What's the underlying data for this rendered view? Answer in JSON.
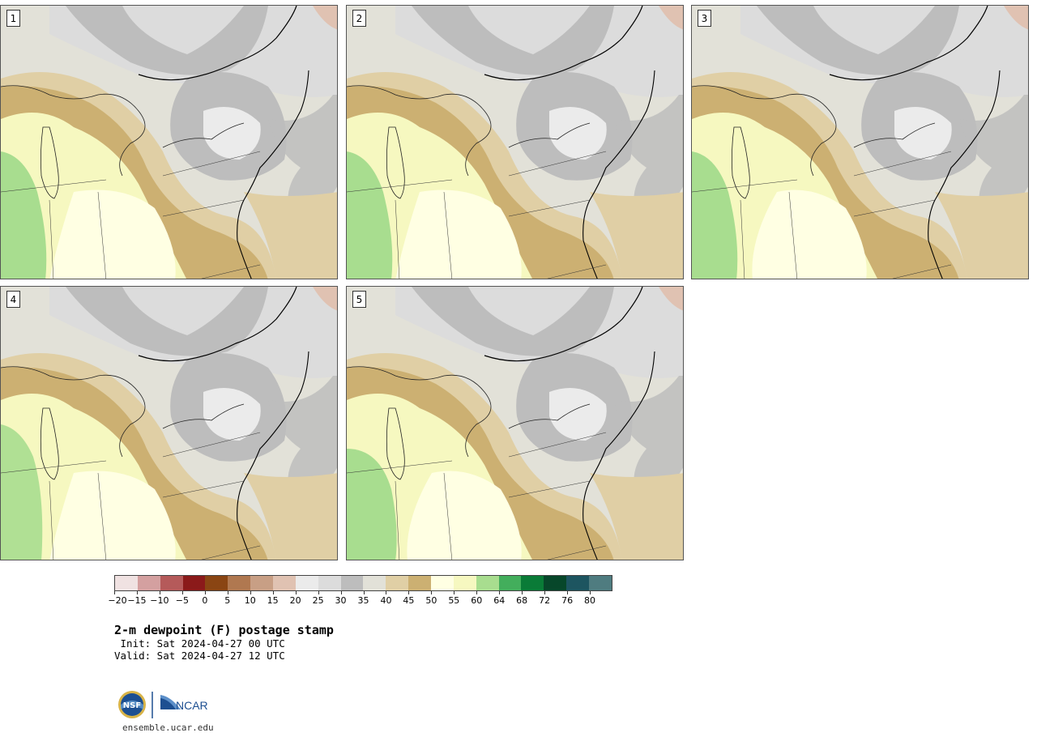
{
  "panels": [
    {
      "number": "1"
    },
    {
      "number": "2"
    },
    {
      "number": "3"
    },
    {
      "number": "4"
    },
    {
      "number": "5"
    }
  ],
  "colorbar": {
    "colors": [
      "#f0e2e2",
      "#d4a0a0",
      "#b55a5a",
      "#8b1a1a",
      "#8a4513",
      "#b07850",
      "#c89f85",
      "#e0c2b2",
      "#ebebeb",
      "#dcdcdc",
      "#bdbdbd",
      "#e2e1d8",
      "#e0cfa5",
      "#ccb072",
      "#ffffe3",
      "#f6f8c0",
      "#a8dd8f",
      "#43ae5c",
      "#0a7b37",
      "#07472a",
      "#1d5560",
      "#4f7c80"
    ],
    "tick_labels": [
      "−20",
      "−15",
      "−10",
      "−5",
      "0",
      "5",
      "10",
      "15",
      "20",
      "25",
      "30",
      "35",
      "40",
      "45",
      "50",
      "55",
      "60",
      "64",
      "68",
      "72",
      "76",
      "80"
    ]
  },
  "title": "2-m dewpoint (F) postage stamp",
  "init_line": " Init: Sat 2024-04-27 00 UTC",
  "valid_line": "Valid: Sat 2024-04-27 12 UTC",
  "logos": {
    "nsf_text": "NSF",
    "ncar_text": "NCAR"
  },
  "footer_url": "ensemble.ucar.edu"
}
